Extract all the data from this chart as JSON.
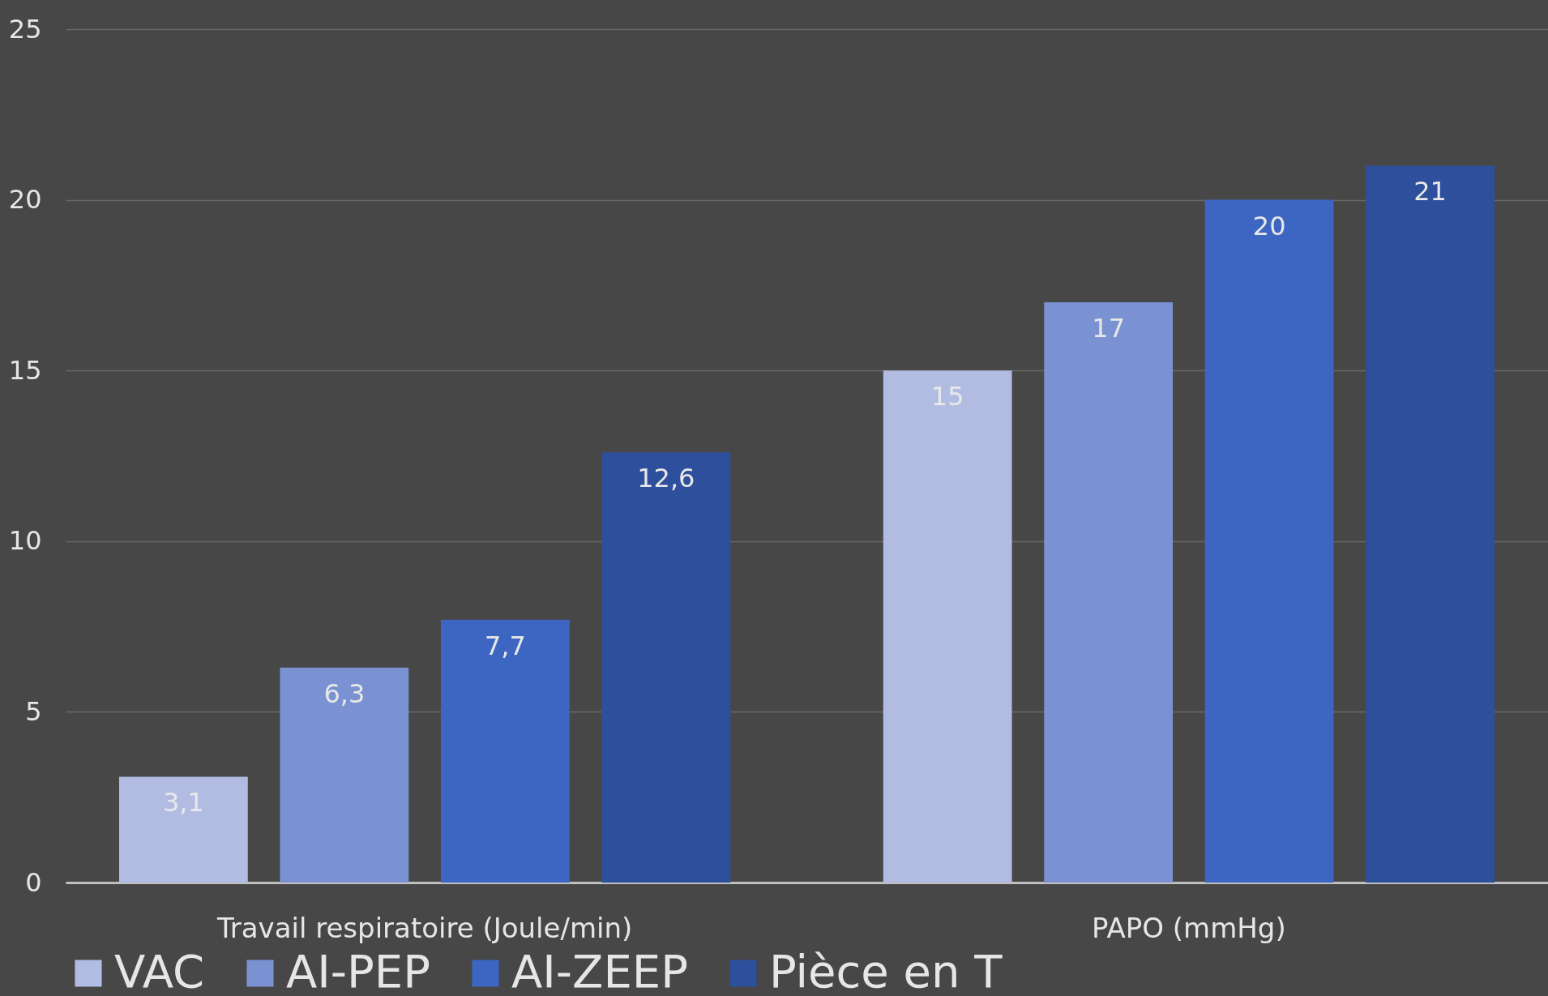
{
  "chart_data": {
    "type": "bar",
    "categories": [
      "Travail respiratoire (Joule/min)",
      "PAPO (mmHg)"
    ],
    "series": [
      {
        "name": "VAC",
        "color": "#b2bce3",
        "values": [
          3.1,
          15
        ],
        "value_labels": [
          "3,1",
          "15"
        ]
      },
      {
        "name": "AI-PEP",
        "color": "#7a92d2",
        "values": [
          6.3,
          17
        ],
        "value_labels": [
          "6,3",
          "17"
        ]
      },
      {
        "name": "AI-ZEEP",
        "color": "#3c66c2",
        "values": [
          7.7,
          20
        ],
        "value_labels": [
          "7,7",
          "20"
        ]
      },
      {
        "name": "Pièce en T",
        "color": "#2e4f9c",
        "values": [
          12.6,
          21
        ],
        "value_labels": [
          "12,6",
          "21"
        ]
      }
    ],
    "ylim": [
      0,
      25
    ],
    "yticks": [
      0,
      5,
      10,
      15,
      20,
      25
    ],
    "grid": "y",
    "legend": "bottom"
  }
}
